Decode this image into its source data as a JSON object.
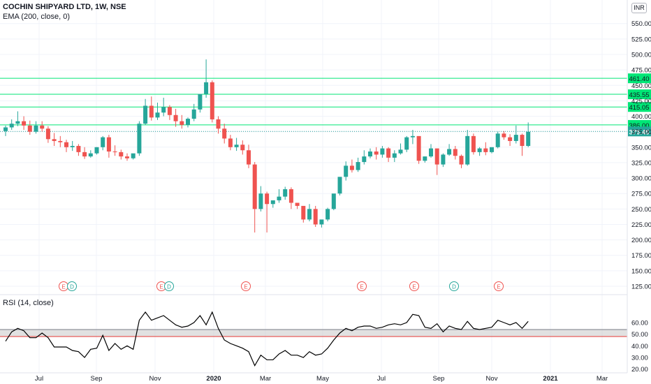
{
  "header": {
    "symbol": "COCHIN SHIPYARD LTD, 1W, NSE",
    "ema": "EMA (200, close, 0)",
    "currency": "INR"
  },
  "rsi_panel": {
    "label": "RSI (14, close)"
  },
  "colors": {
    "up": "#26a69a",
    "down": "#ef5350",
    "level_line": "#00e676",
    "rsi_line": "#000000",
    "rsi_band": "#c8c8c8",
    "rsi_upper": "#787b86",
    "rsi_lower": "#e53935",
    "grid": "#f0f3fa",
    "axis_text": "#131722"
  },
  "chart_data": [
    {
      "type": "candlestick",
      "title": "COCHIN SHIPYARD LTD, 1W, NSE",
      "price_axis_ticks": [
        "125.00",
        "150.00",
        "175.00",
        "200.00",
        "225.00",
        "250.00",
        "275.00",
        "300.00",
        "325.00",
        "350.00",
        "375.00",
        "400.00",
        "425.00",
        "450.00",
        "475.00",
        "500.00",
        "525.00",
        "550.00"
      ],
      "ylim": [
        112,
        585
      ],
      "time_axis_labels": [
        "Jul",
        "Sep",
        "Nov",
        "2020",
        "Mar",
        "May",
        "Jul",
        "Sep",
        "Nov",
        "2021",
        "Mar"
      ],
      "horizontal_levels": [
        {
          "label": "461.40",
          "value": 461.4
        },
        {
          "label": "435.55",
          "value": 435.55
        },
        {
          "label": "415.05",
          "value": 415.05
        },
        {
          "label": "386.00",
          "value": 386.0
        }
      ],
      "last_price": {
        "label": "375.45",
        "value": 375.45
      },
      "events": [
        "E",
        "D",
        "E",
        "D",
        "E",
        "E",
        "E",
        "D",
        "E"
      ],
      "candles": [
        [
          376,
          385,
          382,
          368
        ],
        [
          382,
          395,
          388,
          378
        ],
        [
          388,
          408,
          392,
          384
        ],
        [
          392,
          400,
          385,
          378
        ],
        [
          385,
          393,
          375,
          370
        ],
        [
          375,
          392,
          385,
          372
        ],
        [
          385,
          392,
          380,
          375
        ],
        [
          380,
          384,
          363,
          357
        ],
        [
          363,
          373,
          360,
          352
        ],
        [
          360,
          368,
          358,
          350
        ],
        [
          358,
          362,
          350,
          342
        ],
        [
          350,
          360,
          352,
          344
        ],
        [
          352,
          355,
          342,
          336
        ],
        [
          342,
          350,
          335,
          331
        ],
        [
          335,
          345,
          340,
          333
        ],
        [
          340,
          350,
          350,
          338
        ],
        [
          350,
          368,
          366,
          345
        ],
        [
          366,
          370,
          343,
          333
        ],
        [
          343,
          353,
          342,
          336
        ],
        [
          342,
          346,
          335,
          330
        ],
        [
          335,
          340,
          332,
          328
        ],
        [
          332,
          336,
          340,
          330
        ],
        [
          340,
          392,
          388,
          336
        ],
        [
          388,
          428,
          417,
          386
        ],
        [
          417,
          432,
          398,
          393
        ],
        [
          398,
          422,
          406,
          394
        ],
        [
          406,
          430,
          415,
          400
        ],
        [
          415,
          418,
          402,
          394
        ],
        [
          402,
          412,
          392,
          383
        ],
        [
          392,
          402,
          386,
          380
        ],
        [
          386,
          398,
          396,
          382
        ],
        [
          396,
          420,
          411,
          392
        ],
        [
          411,
          435,
          436,
          406
        ],
        [
          436,
          492,
          455,
          430
        ],
        [
          455,
          458,
          395,
          390
        ],
        [
          395,
          400,
          380,
          372
        ],
        [
          380,
          388,
          364,
          356
        ],
        [
          364,
          370,
          350,
          345
        ],
        [
          350,
          365,
          354,
          344
        ],
        [
          354,
          361,
          345,
          338
        ],
        [
          345,
          354,
          322,
          316
        ],
        [
          322,
          326,
          250,
          212
        ],
        [
          250,
          287,
          275,
          246
        ],
        [
          275,
          278,
          258,
          212
        ],
        [
          258,
          262,
          264,
          252
        ],
        [
          264,
          282,
          270,
          260
        ],
        [
          270,
          286,
          282,
          265
        ],
        [
          282,
          285,
          260,
          250
        ],
        [
          260,
          258,
          255,
          250
        ],
        [
          255,
          254,
          233,
          228
        ],
        [
          233,
          258,
          250,
          230
        ],
        [
          250,
          255,
          225,
          221
        ],
        [
          225,
          228,
          233,
          220
        ],
        [
          233,
          252,
          250,
          230
        ],
        [
          250,
          270,
          275,
          248
        ],
        [
          275,
          298,
          302,
          272
        ],
        [
          302,
          327,
          320,
          296
        ],
        [
          320,
          330,
          313,
          309
        ],
        [
          313,
          333,
          326,
          310
        ],
        [
          326,
          345,
          335,
          322
        ],
        [
          335,
          348,
          343,
          332
        ],
        [
          343,
          350,
          338,
          330
        ],
        [
          338,
          352,
          348,
          333
        ],
        [
          348,
          350,
          333,
          326
        ],
        [
          333,
          345,
          340,
          326
        ],
        [
          340,
          356,
          346,
          338
        ],
        [
          346,
          368,
          366,
          342
        ],
        [
          366,
          378,
          368,
          355
        ],
        [
          368,
          360,
          328,
          323
        ],
        [
          328,
          335,
          335,
          325
        ],
        [
          335,
          355,
          348,
          333
        ],
        [
          348,
          346,
          322,
          305
        ],
        [
          322,
          340,
          338,
          318
        ],
        [
          338,
          355,
          347,
          336
        ],
        [
          347,
          352,
          336,
          330
        ],
        [
          336,
          338,
          322,
          316
        ],
        [
          322,
          378,
          368,
          320
        ],
        [
          368,
          372,
          342,
          338
        ],
        [
          342,
          350,
          348,
          336
        ],
        [
          348,
          358,
          342,
          337
        ],
        [
          342,
          348,
          350,
          340
        ],
        [
          350,
          375,
          372,
          348
        ],
        [
          372,
          376,
          366,
          362
        ],
        [
          366,
          371,
          360,
          352
        ],
        [
          360,
          385,
          370,
          356
        ],
        [
          370,
          372,
          352,
          336
        ],
        [
          352,
          390,
          375,
          350
        ]
      ]
    },
    {
      "type": "line",
      "title": "RSI (14, close)",
      "rsi_axis_ticks": [
        "20.00",
        "30.00",
        "40.00",
        "50.00",
        "60.00"
      ],
      "ylim": [
        18,
        72
      ],
      "bands": {
        "upper": 54,
        "lower": 48
      },
      "values": [
        44,
        52,
        55,
        53,
        47,
        47,
        51,
        47,
        39,
        39,
        39,
        36,
        35,
        30,
        37,
        38,
        49,
        36,
        42,
        37,
        40,
        37,
        62,
        69,
        62,
        64,
        66,
        62,
        58,
        56,
        57,
        60,
        66,
        58,
        69,
        55,
        45,
        42,
        40,
        38,
        35,
        23,
        32,
        28,
        28,
        33,
        36,
        32,
        32,
        30,
        35,
        32,
        33,
        38,
        45,
        51,
        55,
        53,
        56,
        57,
        57,
        55,
        56,
        58,
        59,
        58,
        60,
        67,
        66,
        56,
        55,
        59,
        52,
        57,
        55,
        54,
        61,
        55,
        54,
        55,
        56,
        62,
        60,
        58,
        60,
        55,
        61
      ]
    }
  ]
}
